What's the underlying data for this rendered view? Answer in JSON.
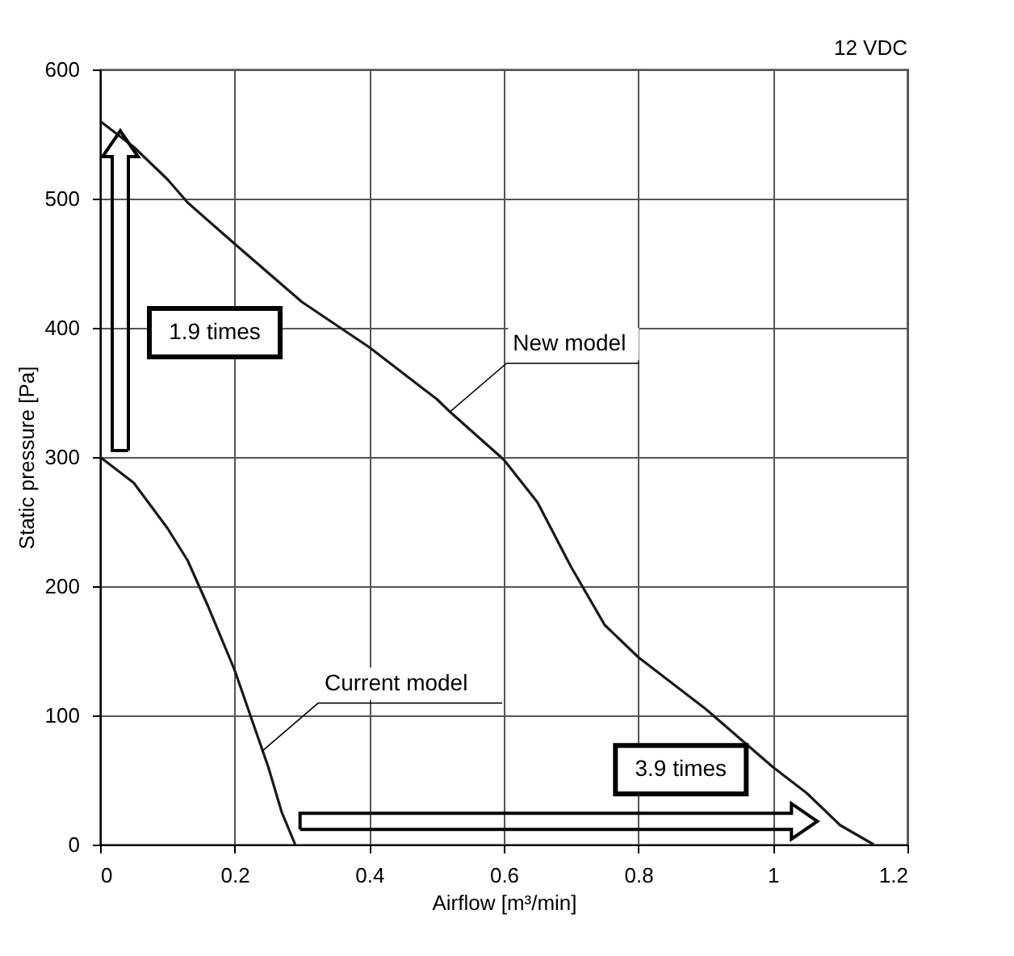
{
  "chart_data": {
    "type": "line",
    "xlabel": "Airflow [m³/min]",
    "ylabel": "Static pressure [Pa]",
    "series": [
      {
        "color": "#1a1a1a",
        "x": [
          0,
          0.05,
          0.1,
          0.13,
          0.2,
          0.3,
          0.4,
          0.5,
          0.52,
          0.6,
          0.65,
          0.7,
          0.75,
          0.8,
          0.9,
          1.0,
          1.05,
          1.1,
          1.15
        ],
        "values": [
          560,
          540,
          515,
          497,
          465,
          420,
          385,
          345,
          335,
          298,
          265,
          215,
          170,
          145,
          105,
          60,
          40,
          15,
          0
        ]
      },
      {
        "color": "#1a1a1a",
        "x": [
          0,
          0.05,
          0.1,
          0.13,
          0.16,
          0.2,
          0.23,
          0.25,
          0.27,
          0.29
        ],
        "values": [
          300,
          280,
          245,
          220,
          185,
          135,
          90,
          60,
          25,
          0
        ]
      }
    ],
    "xlim": [
      0,
      1.2
    ],
    "xticks": [
      0,
      0.2,
      0.4,
      0.6,
      0.8,
      1,
      1.2
    ],
    "ylim": [
      0,
      600
    ],
    "yticks": [
      0,
      100,
      200,
      300,
      400,
      500,
      600
    ],
    "grid": true,
    "marker": "none",
    "line_style": "solid",
    "annotations": [
      "12 VDC",
      {
        "text": "New model",
        "x": 0.52,
        "y": 335
      },
      {
        "text": "Current model",
        "x": 0.24,
        "y": 72
      },
      "1.9 times",
      "3.9 times"
    ]
  }
}
